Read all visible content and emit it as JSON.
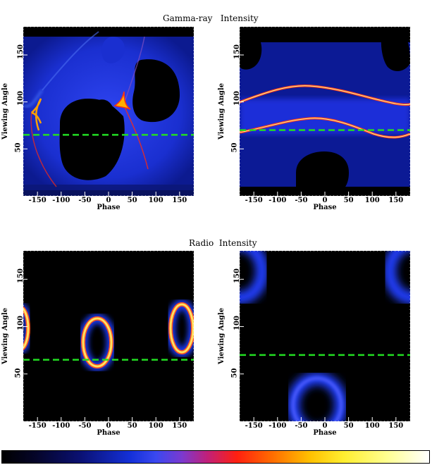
{
  "section_titles": {
    "top": [
      "Gamma-ray",
      "Intensity"
    ],
    "bottom": [
      "Radio",
      "Intensity"
    ]
  },
  "chart_data": [
    {
      "type": "heatmap",
      "panel": "gamma-left",
      "xlabel": "Phase",
      "ylabel": "Viewing Angle",
      "xlim": [
        -180,
        180
      ],
      "ylim": [
        0,
        180
      ],
      "xticks": [
        -150,
        -100,
        -50,
        0,
        50,
        100,
        150
      ],
      "yticks": [
        50,
        100,
        150
      ],
      "observer_line": 65,
      "observer_line_color": "#22dd22"
    },
    {
      "type": "heatmap",
      "panel": "gamma-right",
      "xlabel": "Phase",
      "ylabel": "Viewing Angle",
      "xlim": [
        -180,
        180
      ],
      "ylim": [
        0,
        180
      ],
      "xticks": [
        -150,
        -100,
        -50,
        0,
        50,
        100,
        150
      ],
      "yticks": [
        50,
        100,
        150
      ],
      "observer_line": 70,
      "observer_line_color": "#22dd22"
    },
    {
      "type": "heatmap",
      "panel": "radio-left",
      "xlabel": "Phase",
      "ylabel": "Viewing Angle",
      "xlim": [
        -180,
        180
      ],
      "ylim": [
        0,
        180
      ],
      "xticks": [
        -150,
        -100,
        -50,
        0,
        50,
        100,
        150
      ],
      "yticks": [
        50,
        100,
        150
      ],
      "observer_line": 65,
      "observer_line_color": "#22dd22"
    },
    {
      "type": "heatmap",
      "panel": "radio-right",
      "xlabel": "Phase",
      "ylabel": "Viewing Angle",
      "xlim": [
        -180,
        180
      ],
      "ylim": [
        0,
        180
      ],
      "xticks": [
        -150,
        -100,
        -50,
        0,
        50,
        100,
        150
      ],
      "yticks": [
        50,
        100,
        150
      ],
      "observer_line": 70,
      "observer_line_color": "#22dd22"
    }
  ],
  "colorbar": {
    "colors": [
      "#000000",
      "#0a1070",
      "#1430d8",
      "#c0207a",
      "#ff2010",
      "#ffc000",
      "#ffff90",
      "#ffffff"
    ]
  }
}
